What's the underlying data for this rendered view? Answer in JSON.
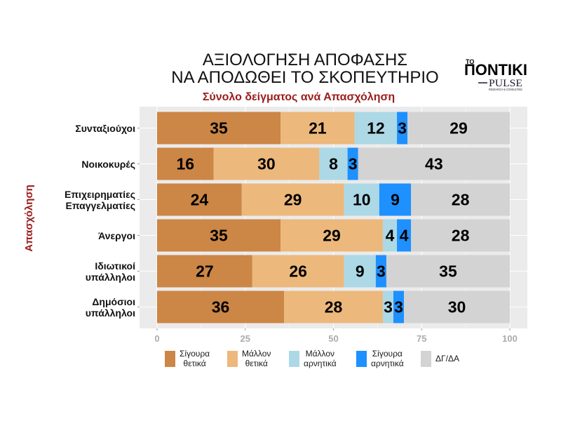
{
  "logo": {
    "prefix": "ΤΟ",
    "name": "ΠΟΝΤΙΚΙ",
    "partner": "PULSE",
    "partner_tagline": "RESEARCH & CONSULTING"
  },
  "theme": {
    "accent": "#9B1C1C",
    "panel_background": "#EBEBEB"
  },
  "chart_data": {
    "type": "bar",
    "orientation": "horizontal",
    "stacked": true,
    "title": "ΑΞΙΟΛΟΓΗΣΗ ΑΠΟΦΑΣΗΣ\nΝΑ ΑΠΟΔΩΘΕΙ ΤΟ ΣΚΟΠΕΥΤΗΡΙΟ",
    "subtitle": "Σύνολο δείγματος ανά Απασχόληση",
    "xlabel": "",
    "ylabel": "Απασχόληση",
    "xlim": [
      0,
      100
    ],
    "xticks": [
      0,
      25,
      50,
      75,
      100
    ],
    "grid": true,
    "legend_position": "bottom",
    "categories": [
      "Συνταξιούχοι",
      "Νοικοκυρές",
      "Επιχειρηματίες\nΕπαγγελματίες",
      "Άνεργοι",
      "Ιδιωτικοί\nυπάλληλοι",
      "Δημόσιοι\nυπάλληλοι"
    ],
    "series": [
      {
        "name": "Σίγουρα\nθετικά",
        "color": "#CC8646",
        "values": [
          35,
          16,
          24,
          35,
          27,
          36
        ]
      },
      {
        "name": "Μάλλον\nθετικά",
        "color": "#ECB87C",
        "values": [
          21,
          30,
          29,
          29,
          26,
          28
        ]
      },
      {
        "name": "Μάλλον\nαρνητικά",
        "color": "#ADD8E6",
        "values": [
          12,
          8,
          10,
          4,
          9,
          3
        ]
      },
      {
        "name": "Σίγουρα\nαρνητικά",
        "color": "#1E90FF",
        "values": [
          3,
          3,
          9,
          4,
          3,
          3
        ]
      },
      {
        "name": "ΔΓ/ΔΑ",
        "color": "#D3D3D3",
        "values": [
          29,
          43,
          28,
          28,
          35,
          30
        ]
      }
    ]
  }
}
